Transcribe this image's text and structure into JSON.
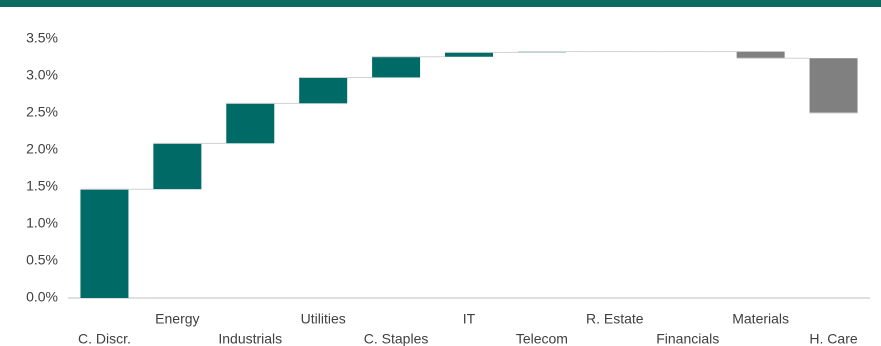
{
  "chart_data": {
    "type": "waterfall",
    "categories": [
      "C. Discr.",
      "Energy",
      "Industrials",
      "Utilities",
      "C. Staples",
      "IT",
      "Telecom",
      "R. Estate",
      "Financials",
      "Materials",
      "H. Care"
    ],
    "values": [
      1.47,
      0.62,
      0.54,
      0.35,
      0.28,
      0.06,
      0.01,
      0,
      0,
      -0.09,
      -0.74
    ],
    "colors": {
      "increase": "#006b66",
      "decrease": "#808080"
    },
    "ylim": [
      0,
      3.5
    ],
    "yticks": [
      {
        "value": 0,
        "label": "0.0%"
      },
      {
        "value": 0.5,
        "label": "0.5%"
      },
      {
        "value": 1,
        "label": "1.0%"
      },
      {
        "value": 1.5,
        "label": "1.5%"
      },
      {
        "value": 2,
        "label": "2.0%"
      },
      {
        "value": 2.5,
        "label": "2.5%"
      },
      {
        "value": 3,
        "label": "3.0%"
      },
      {
        "value": 3.5,
        "label": "3.5%"
      }
    ],
    "grid": false
  }
}
